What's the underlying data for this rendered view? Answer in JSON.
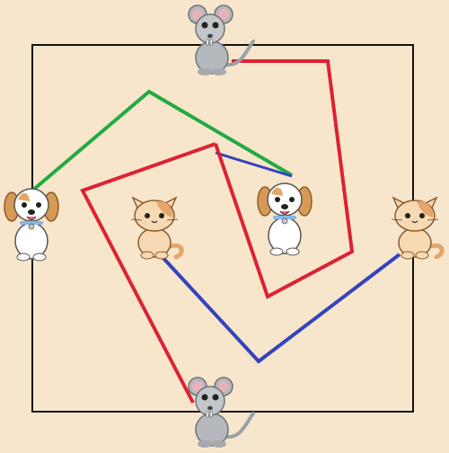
{
  "board": {
    "background": "#f8e6cc",
    "frame_color": "#111111"
  },
  "pieces": [
    {
      "id": "mouse-top",
      "kind": "mouse"
    },
    {
      "id": "mouse-bottom",
      "kind": "mouse"
    },
    {
      "id": "dog-left",
      "kind": "dog"
    },
    {
      "id": "dog-center",
      "kind": "dog"
    },
    {
      "id": "cat-center",
      "kind": "cat"
    },
    {
      "id": "cat-right",
      "kind": "cat"
    }
  ],
  "paths": [
    {
      "name": "green-path",
      "color": "#22aa44",
      "from": "dog-left",
      "to": "dog-center"
    },
    {
      "name": "blue-path",
      "color": "#3344bb",
      "from": "cat-center",
      "to": "cat-right"
    },
    {
      "name": "red-path-top",
      "color": "#dd2233",
      "from": "mouse-top",
      "to": "dog-center"
    },
    {
      "name": "red-path-bottom",
      "color": "#dd2233",
      "from": "mouse-bottom",
      "to": "dog-center"
    }
  ]
}
